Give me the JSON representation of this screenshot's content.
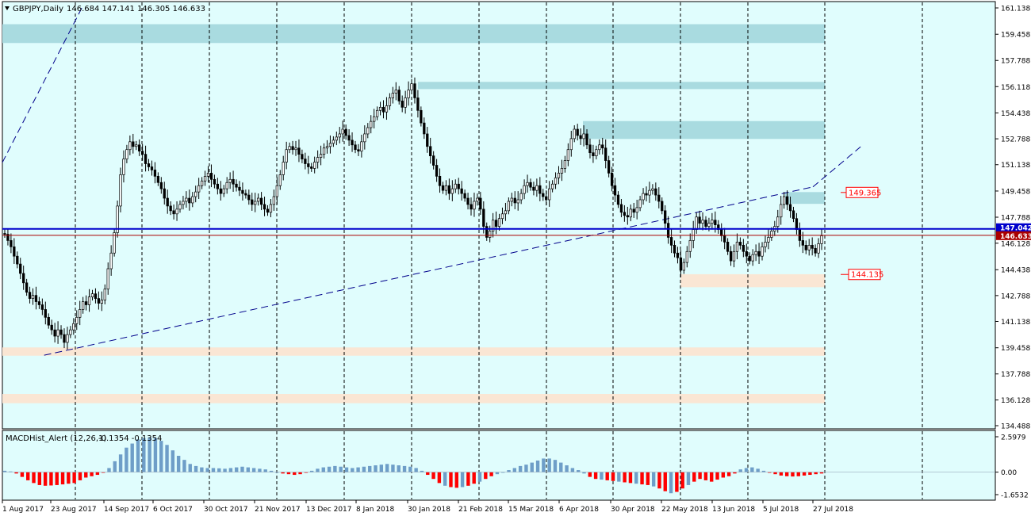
{
  "header": {
    "symbol": "GBPJPY,Daily",
    "ohlc": "146.684 147.141 146.305 146.633"
  },
  "sub_header": {
    "indicator": "MACDHist_Alert (12,26,1)",
    "values": "-0.1354 -0.1354"
  },
  "colors": {
    "plot_bg": "#e0fdfd",
    "zone_blue": "#a9dbe0",
    "zone_peach": "#fae6d4",
    "hline_blue": "#0000cc",
    "hline_red": "#aa0000",
    "label_red": "#ff0000",
    "candle": "#000000",
    "macd_pos": "#6e9ec8",
    "macd_neg": "#ff0000"
  },
  "chart_data": [
    {
      "type": "candlestick",
      "title": "GBPJPY,Daily",
      "ylim": [
        134.488,
        161.138
      ],
      "y_ticks": [
        "161.138",
        "159.458",
        "157.788",
        "156.118",
        "154.438",
        "152.788",
        "151.138",
        "149.458",
        "147.788",
        "146.128",
        "144.438",
        "142.788",
        "141.138",
        "139.458",
        "137.788",
        "136.128",
        "134.488"
      ],
      "x_ticks": [
        "1 Aug 2017",
        "23 Aug 2017",
        "14 Sep 2017",
        "6 Oct 2017",
        "30 Oct 2017",
        "21 Nov 2017",
        "13 Dec 2017",
        "8 Jan 2018",
        "30 Jan 2018",
        "21 Feb 2018",
        "15 Mar 2018",
        "6 Apr 2018",
        "30 Apr 2018",
        "22 May 2018",
        "13 Jun 2018",
        "5 Jul 2018",
        "27 Jul 2018"
      ],
      "price_marks": [
        {
          "value": 147.042,
          "label": "147.042",
          "color": "blue"
        },
        {
          "value": 146.633,
          "label": "146.633",
          "color": "dark-red"
        }
      ],
      "annotations": [
        {
          "label": "149.365",
          "value": 149.365
        },
        {
          "label": "144.135",
          "value": 144.135
        }
      ],
      "zones": [
        {
          "kind": "resistance",
          "from": 158.9,
          "to": 160.1
        },
        {
          "kind": "resistance",
          "from": 155.96,
          "to": 156.42
        },
        {
          "kind": "resistance",
          "from": 152.78,
          "to": 153.92
        },
        {
          "kind": "resistance",
          "from": 148.64,
          "to": 149.39
        },
        {
          "kind": "support",
          "from": 143.32,
          "to": 144.15
        },
        {
          "kind": "support",
          "from": 138.95,
          "to": 139.48
        },
        {
          "kind": "support",
          "from": 135.92,
          "to": 136.51
        }
      ],
      "trendlines": [
        {
          "points": [
            [
              "1 Aug 2017",
              151.28
            ],
            [
              "5 Sep 2017",
              161.18
            ]
          ]
        },
        {
          "points": [
            [
              "20 Aug 2017",
              138.98
            ],
            [
              "27 Jul 2018",
              149.72
            ]
          ]
        },
        {
          "points": [
            [
              "27 Jul 2018",
              149.72
            ],
            [
              "17 Aug 2018",
              152.28
            ]
          ]
        }
      ],
      "closes": [
        146.7,
        146.3,
        145.9,
        145.3,
        144.8,
        144.2,
        143.6,
        143.0,
        142.6,
        142.8,
        142.4,
        142.2,
        141.9,
        141.4,
        140.9,
        140.6,
        140.2,
        140.6,
        140.3,
        139.8,
        140.3,
        140.6,
        141.0,
        141.4,
        141.9,
        142.4,
        142.2,
        142.7,
        142.9,
        142.6,
        142.3,
        142.5,
        143.2,
        144.5,
        145.5,
        146.8,
        148.5,
        150.5,
        151.5,
        152.1,
        152.6,
        152.3,
        152.4,
        152.0,
        151.8,
        151.2,
        151.0,
        150.8,
        150.4,
        150.0,
        149.6,
        149.0,
        148.5,
        148.2,
        148.0,
        148.3,
        148.6,
        148.8,
        149.0,
        148.7,
        149.1,
        149.4,
        149.8,
        150.1,
        150.4,
        150.6,
        150.2,
        149.9,
        149.6,
        149.3,
        149.6,
        150.0,
        150.2,
        149.9,
        149.7,
        149.5,
        149.3,
        149.2,
        148.9,
        148.6,
        148.8,
        149.0,
        148.6,
        148.3,
        148.1,
        148.6,
        149.1,
        149.8,
        150.5,
        151.3,
        152.1,
        152.3,
        152.1,
        152.2,
        151.8,
        151.5,
        151.2,
        151.0,
        150.9,
        151.3,
        151.6,
        151.8,
        152.2,
        152.3,
        152.5,
        152.7,
        152.9,
        153.1,
        153.4,
        153.0,
        152.7,
        152.4,
        152.1,
        152.0,
        152.6,
        153.1,
        153.5,
        153.9,
        154.2,
        154.6,
        154.8,
        154.5,
        154.9,
        155.4,
        155.7,
        155.9,
        155.2,
        154.8,
        155.4,
        155.9,
        156.3,
        155.4,
        154.6,
        153.8,
        153.1,
        152.3,
        151.7,
        151.1,
        150.4,
        149.8,
        149.5,
        149.8,
        149.3,
        149.6,
        149.9,
        149.6,
        149.3,
        149.0,
        148.6,
        148.3,
        148.8,
        149.0,
        148.3,
        147.2,
        146.5,
        146.9,
        147.6,
        147.2,
        147.7,
        148.0,
        148.2,
        148.8,
        149.0,
        148.7,
        148.9,
        149.3,
        149.8,
        150.0,
        149.7,
        149.5,
        149.8,
        149.3,
        149.1,
        148.9,
        149.6,
        149.9,
        150.3,
        150.6,
        150.9,
        151.4,
        152.1,
        152.8,
        153.4,
        153.0,
        152.8,
        153.1,
        152.4,
        151.9,
        151.7,
        152.1,
        152.4,
        152.2,
        151.4,
        150.6,
        149.8,
        149.2,
        148.6,
        148.1,
        147.9,
        147.8,
        148.3,
        148.1,
        148.4,
        148.9,
        149.3,
        149.2,
        149.5,
        149.6,
        149.2,
        148.8,
        148.2,
        147.4,
        146.5,
        146.0,
        145.5,
        145.2,
        144.4,
        144.9,
        145.6,
        146.3,
        147.0,
        147.8,
        147.4,
        147.6,
        147.2,
        147.4,
        147.6,
        147.3,
        147.0,
        146.6,
        146.2,
        145.6,
        145.0,
        145.6,
        146.2,
        146.0,
        145.6,
        145.3,
        145.0,
        145.4,
        145.6,
        145.3,
        145.9,
        146.2,
        146.5,
        146.9,
        147.2,
        147.8,
        148.6,
        149.1,
        148.6,
        148.2,
        147.7,
        147.0,
        146.3,
        146.0,
        145.7,
        146.0,
        145.8,
        145.5,
        146.1,
        146.6
      ],
      "series": [
        {
          "name": "MACDHist_Alert (12,26,1)",
          "ylim": [
            -1.6532,
            2.5979
          ],
          "y_ticks": [
            "2.5979",
            "0.00",
            "-1.6532"
          ],
          "values": [
            0.1,
            0.05,
            -0.1,
            -0.35,
            -0.6,
            -0.8,
            -0.95,
            -1.0,
            -0.98,
            -0.95,
            -0.9,
            -0.85,
            -0.8,
            -0.6,
            -0.4,
            -0.3,
            -0.2,
            -0.05,
            0.3,
            0.8,
            1.3,
            1.8,
            2.1,
            2.4,
            2.5,
            2.55,
            2.5,
            2.3,
            2.0,
            1.6,
            1.2,
            0.9,
            0.6,
            0.45,
            0.35,
            0.3,
            0.3,
            0.28,
            0.25,
            0.3,
            0.35,
            0.4,
            0.35,
            0.3,
            0.25,
            0.2,
            0.1,
            0.0,
            -0.1,
            -0.15,
            -0.2,
            -0.15,
            -0.05,
            0.1,
            0.25,
            0.35,
            0.4,
            0.45,
            0.4,
            0.35,
            0.3,
            0.35,
            0.4,
            0.45,
            0.5,
            0.55,
            0.6,
            0.55,
            0.5,
            0.45,
            0.4,
            0.3,
            0.1,
            -0.2,
            -0.5,
            -0.8,
            -1.0,
            -1.1,
            -1.15,
            -1.1,
            -1.0,
            -0.85,
            -0.7,
            -0.5,
            -0.3,
            -0.15,
            0.0,
            0.15,
            0.3,
            0.45,
            0.55,
            0.7,
            0.85,
            1.0,
            1.0,
            0.9,
            0.7,
            0.5,
            0.3,
            0.15,
            -0.1,
            -0.35,
            -0.5,
            -0.55,
            -0.6,
            -0.65,
            -0.7,
            -0.75,
            -0.8,
            -0.85,
            -0.9,
            -0.95,
            -1.05,
            -1.2,
            -1.4,
            -1.55,
            -1.45,
            -1.2,
            -0.95,
            -0.7,
            -0.5,
            -0.6,
            -0.7,
            -0.55,
            -0.4,
            -0.3,
            -0.1,
            0.2,
            0.3,
            0.35,
            0.25,
            0.1,
            -0.05,
            -0.15,
            -0.25,
            -0.3,
            -0.32,
            -0.3,
            -0.25,
            -0.2,
            -0.15,
            -0.1
          ]
        }
      ]
    }
  ]
}
